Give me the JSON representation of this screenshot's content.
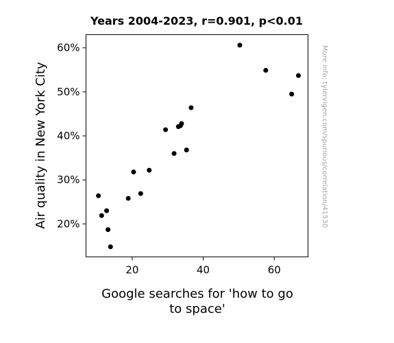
{
  "chart_data": {
    "type": "scatter",
    "title": "Years 2004-2023, r=0.901, p<0.01",
    "xlabel_lines": [
      "Google searches for 'how to go",
      "to space'"
    ],
    "ylabel": "Air quality in New York City",
    "watermark": "More info: tylervigen.com/spurious/correlation/41530",
    "xlim": [
      7,
      69.5
    ],
    "ylim": [
      12.5,
      63
    ],
    "x_ticks": [
      {
        "value": 20,
        "label": "20"
      },
      {
        "value": 40,
        "label": "40"
      },
      {
        "value": 60,
        "label": "60"
      }
    ],
    "y_ticks": [
      {
        "value": 20,
        "label": "20%"
      },
      {
        "value": 30,
        "label": "30%"
      },
      {
        "value": 40,
        "label": "40%"
      },
      {
        "value": 50,
        "label": "50%"
      },
      {
        "value": 60,
        "label": "60%"
      }
    ],
    "grid": false,
    "point_color": "#000000",
    "points": [
      {
        "x": 10.5,
        "y": 26.4
      },
      {
        "x": 11.4,
        "y": 21.9
      },
      {
        "x": 12.8,
        "y": 23.0
      },
      {
        "x": 13.2,
        "y": 18.7
      },
      {
        "x": 13.9,
        "y": 14.8
      },
      {
        "x": 18.9,
        "y": 25.8
      },
      {
        "x": 20.4,
        "y": 31.8
      },
      {
        "x": 22.4,
        "y": 26.9
      },
      {
        "x": 24.8,
        "y": 32.2
      },
      {
        "x": 29.4,
        "y": 41.4
      },
      {
        "x": 31.8,
        "y": 36.0
      },
      {
        "x": 33.0,
        "y": 42.1
      },
      {
        "x": 33.6,
        "y": 42.3
      },
      {
        "x": 33.9,
        "y": 42.8
      },
      {
        "x": 35.3,
        "y": 36.8
      },
      {
        "x": 36.6,
        "y": 46.4
      },
      {
        "x": 50.3,
        "y": 60.6
      },
      {
        "x": 57.6,
        "y": 54.9
      },
      {
        "x": 64.9,
        "y": 49.5
      },
      {
        "x": 66.8,
        "y": 53.7
      }
    ]
  }
}
